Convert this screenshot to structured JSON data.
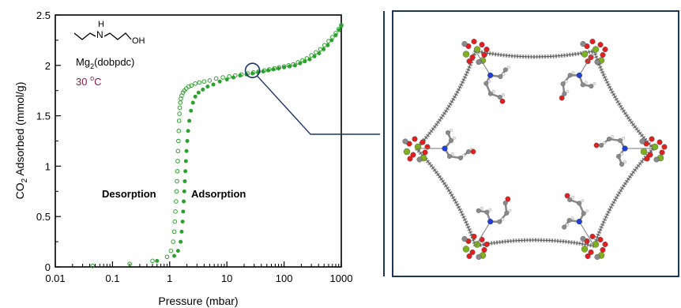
{
  "chart_data": {
    "type": "scatter",
    "xlabel": "Pressure (mbar)",
    "ylabel_main": "CO",
    "ylabel_sub": "2",
    "ylabel_rest": " Adsorbed (mmol/g)",
    "xscale": "log",
    "xlim": [
      0.01,
      1000
    ],
    "ylim": [
      0,
      2.5
    ],
    "x_ticks": [
      {
        "value": 0.01,
        "label": "0.01"
      },
      {
        "value": 0.1,
        "label": "0.1"
      },
      {
        "value": 1,
        "label": "1"
      },
      {
        "value": 10,
        "label": "10"
      },
      {
        "value": 100,
        "label": "100"
      },
      {
        "value": 1000,
        "label": "1000"
      }
    ],
    "y_ticks": [
      {
        "value": 0,
        "label": "0"
      },
      {
        "value": 0.5,
        "label": "0.5"
      },
      {
        "value": 1,
        "label": "1"
      },
      {
        "value": 1.5,
        "label": "1.5"
      },
      {
        "value": 2,
        "label": "2"
      },
      {
        "value": 2.5,
        "label": "2.5"
      }
    ],
    "series": [
      {
        "name": "Desorption",
        "marker": "open-circle",
        "color": "#2ca02c",
        "x": [
          0.045,
          0.2,
          0.5,
          0.9,
          1.05,
          1.15,
          1.2,
          1.23,
          1.26,
          1.29,
          1.32,
          1.34,
          1.36,
          1.38,
          1.4,
          1.42,
          1.44,
          1.46,
          1.48,
          1.5,
          1.53,
          1.57,
          1.62,
          1.7,
          1.8,
          1.95,
          2.15,
          2.4,
          2.8,
          3.3,
          4,
          5,
          6.5,
          8.5,
          11,
          14,
          18,
          23,
          29,
          36,
          45,
          55,
          68,
          82,
          100,
          120,
          145,
          175,
          210,
          250,
          300,
          360,
          430,
          510,
          600,
          700,
          800,
          900,
          1000
        ],
        "y": [
          0.01,
          0.03,
          0.06,
          0.1,
          0.16,
          0.25,
          0.35,
          0.45,
          0.55,
          0.65,
          0.75,
          0.85,
          0.95,
          1.05,
          1.15,
          1.25,
          1.35,
          1.45,
          1.52,
          1.58,
          1.63,
          1.67,
          1.7,
          1.73,
          1.75,
          1.77,
          1.79,
          1.8,
          1.82,
          1.83,
          1.84,
          1.85,
          1.87,
          1.88,
          1.89,
          1.9,
          1.91,
          1.92,
          1.93,
          1.94,
          1.95,
          1.96,
          1.97,
          1.98,
          1.99,
          2.0,
          2.01,
          2.03,
          2.05,
          2.07,
          2.1,
          2.13,
          2.16,
          2.2,
          2.24,
          2.28,
          2.32,
          2.36,
          2.4
        ]
      },
      {
        "name": "Adsorption",
        "marker": "filled-circle",
        "color": "#2ca02c",
        "x": [
          0.6,
          1.2,
          1.4,
          1.55,
          1.62,
          1.68,
          1.72,
          1.76,
          1.8,
          1.84,
          1.88,
          1.92,
          1.97,
          2.03,
          2.1,
          2.2,
          2.35,
          2.55,
          2.8,
          3.2,
          3.8,
          4.6,
          5.8,
          7.5,
          10,
          13,
          17,
          22,
          28,
          35,
          43,
          53,
          65,
          80,
          100,
          125,
          155,
          190,
          230,
          280,
          340,
          410,
          490,
          580,
          680,
          800,
          920,
          1000
        ],
        "y": [
          0.06,
          0.11,
          0.16,
          0.25,
          0.35,
          0.45,
          0.55,
          0.65,
          0.75,
          0.85,
          0.95,
          1.05,
          1.15,
          1.25,
          1.35,
          1.45,
          1.55,
          1.63,
          1.69,
          1.73,
          1.76,
          1.79,
          1.81,
          1.84,
          1.86,
          1.88,
          1.9,
          1.91,
          1.92,
          1.93,
          1.94,
          1.95,
          1.96,
          1.97,
          1.98,
          1.99,
          2.0,
          2.02,
          2.04,
          2.06,
          2.09,
          2.12,
          2.16,
          2.2,
          2.25,
          2.3,
          2.35,
          2.39
        ]
      }
    ],
    "annotations": {
      "desorption_label": "Desorption",
      "adsorption_label": "Adsorption",
      "molecule_h": "H",
      "molecule_n": "N",
      "molecule_oh": "OH",
      "material_main": "Mg",
      "material_sub": "2",
      "material_rest": "(dobpdc)",
      "temperature_main": "30 ",
      "temperature_sup": "o",
      "temperature_rest": "C"
    },
    "zoom_marker": {
      "x": 28,
      "y": 1.95
    },
    "colors": {
      "series": "#2ca02c",
      "temperature_text": "#8b1a4a",
      "callout_line": "#1f3566",
      "structure_frame": "#1f3566",
      "carbon": "#8a8a8a",
      "oxygen": "#e02020",
      "magnesium": "#7fb020",
      "nitrogen": "#1f3fd6",
      "hydrogen": "#e8e8e8"
    }
  }
}
